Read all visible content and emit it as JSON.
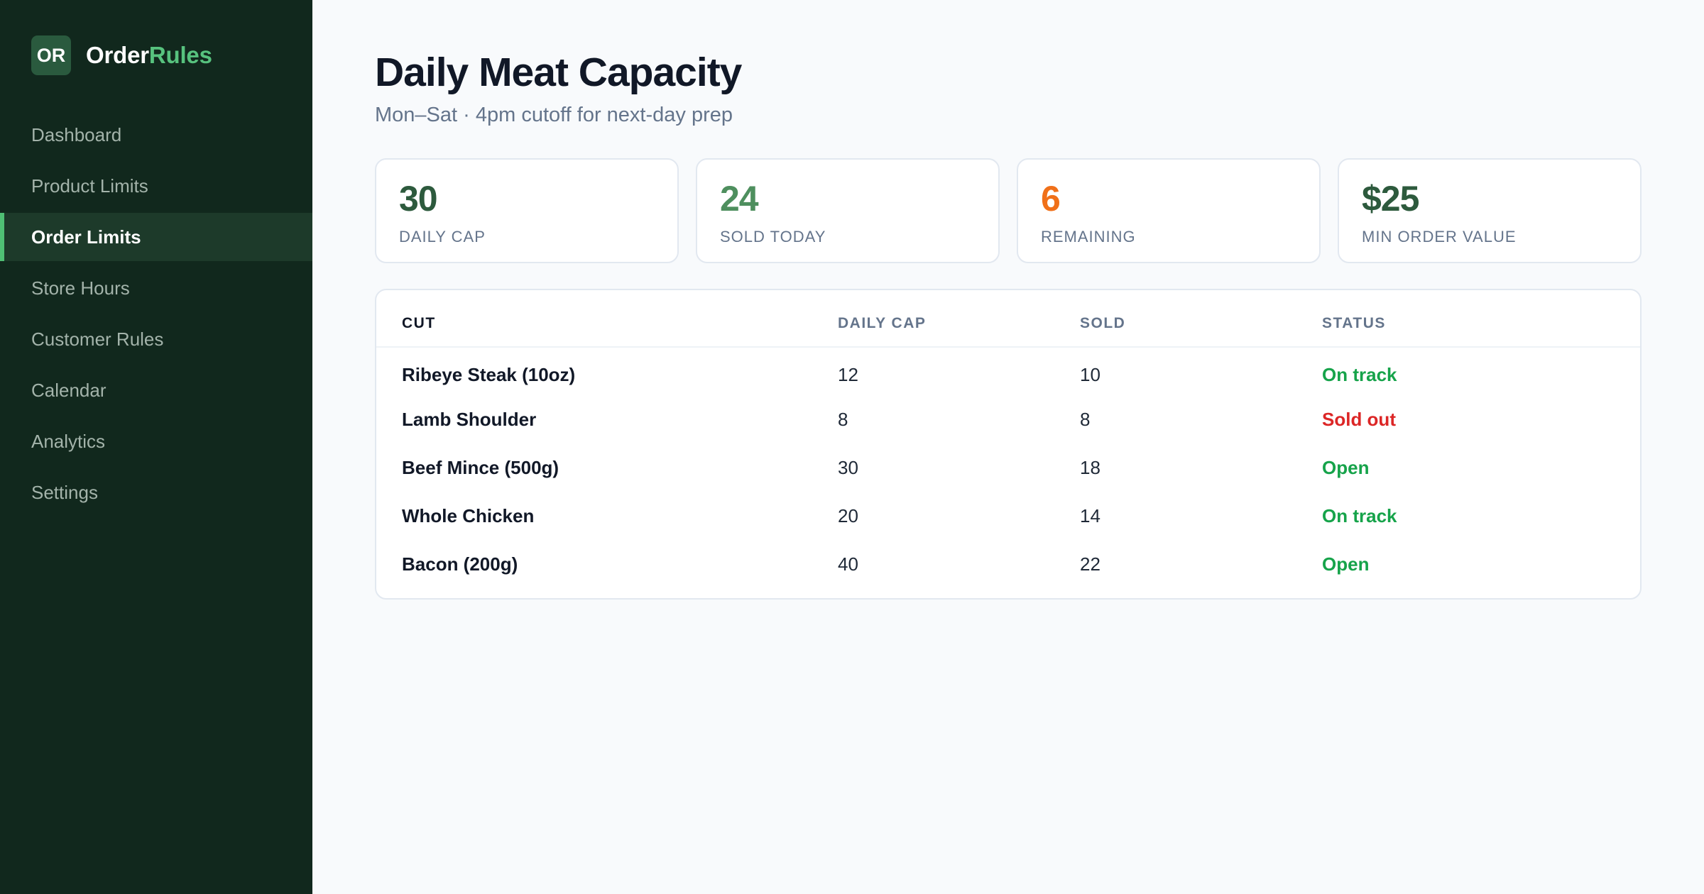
{
  "brand": {
    "logo_text": "OR",
    "name_main": "Order",
    "name_accent": "Rules"
  },
  "nav": {
    "items": [
      {
        "label": "Dashboard"
      },
      {
        "label": "Product Limits"
      },
      {
        "label": "Order Limits",
        "active": true
      },
      {
        "label": "Store Hours"
      },
      {
        "label": "Customer Rules"
      },
      {
        "label": "Calendar"
      },
      {
        "label": "Analytics"
      },
      {
        "label": "Settings"
      }
    ]
  },
  "page": {
    "title": "Daily Meat Capacity",
    "subtitle": "Mon–Sat · 4pm cutoff for next-day prep"
  },
  "stats": [
    {
      "value": "30",
      "label": "DAILY CAP",
      "color": "#2d5a3d"
    },
    {
      "value": "24",
      "label": "SOLD TODAY",
      "color": "#4e8f5e"
    },
    {
      "value": "6",
      "label": "REMAINING",
      "color": "#f07019"
    },
    {
      "value": "$25",
      "label": "MIN ORDER VALUE",
      "color": "#2d5a3d"
    }
  ],
  "table": {
    "headers": [
      "CUT",
      "DAILY CAP",
      "SOLD",
      "STATUS"
    ],
    "rows": [
      {
        "cut": "Ribeye Steak (10oz)",
        "cap": "12",
        "sold": "10",
        "status": "On track",
        "status_color": "#16a34a"
      },
      {
        "cut": "Lamb Shoulder",
        "cap": "8",
        "sold": "8",
        "status": "Sold out",
        "status_color": "#dc2626"
      },
      {
        "cut": "Beef Mince (500g)",
        "cap": "30",
        "sold": "18",
        "status": "Open",
        "status_color": "#16a34a"
      },
      {
        "cut": "Whole Chicken",
        "cap": "20",
        "sold": "14",
        "status": "On track",
        "status_color": "#16a34a"
      },
      {
        "cut": "Bacon (200g)",
        "cap": "40",
        "sold": "22",
        "status": "Open",
        "status_color": "#16a34a"
      }
    ]
  }
}
